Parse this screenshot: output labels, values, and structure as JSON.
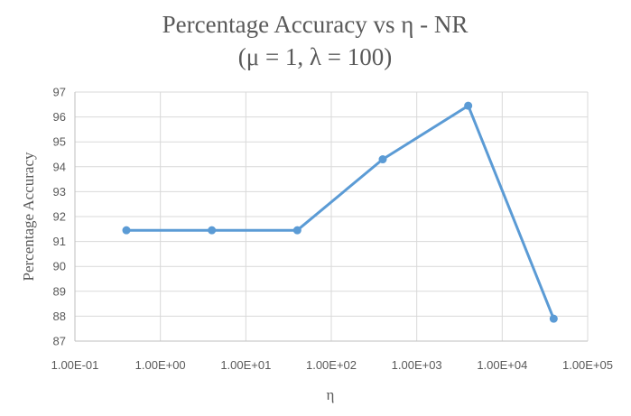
{
  "chart_data": {
    "type": "line",
    "title": "Percentage Accuracy vs η - NR",
    "subtitle": "(μ = 1, λ = 100)",
    "xlabel": "η",
    "ylabel": "Percentage Accuracy",
    "x_scale": "log",
    "xlim": [
      0.1,
      100000
    ],
    "ylim": [
      87,
      97
    ],
    "x_tick_labels": [
      "1.00E-01",
      "1.00E+00",
      "1.00E+01",
      "1.00E+02",
      "1.00E+03",
      "1.00E+04",
      "1.00E+05"
    ],
    "y_tick_labels": [
      "87",
      "88",
      "89",
      "90",
      "91",
      "92",
      "93",
      "94",
      "95",
      "96",
      "97"
    ],
    "grid": "both",
    "legend": "none",
    "series": [
      {
        "color": "#5b9bd5",
        "points": [
          {
            "x": 0.4,
            "y": 91.45
          },
          {
            "x": 4,
            "y": 91.45
          },
          {
            "x": 40,
            "y": 91.45
          },
          {
            "x": 400,
            "y": 94.3
          },
          {
            "x": 4000,
            "y": 96.45
          },
          {
            "x": 40000,
            "y": 87.9
          }
        ]
      }
    ]
  }
}
